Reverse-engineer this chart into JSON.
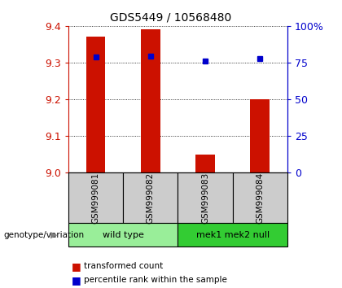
{
  "title": "GDS5449 / 10568480",
  "samples": [
    "GSM999081",
    "GSM999082",
    "GSM999083",
    "GSM999084"
  ],
  "bar_values": [
    9.37,
    9.39,
    9.05,
    9.2
  ],
  "dot_values": [
    9.315,
    9.317,
    9.305,
    9.31
  ],
  "ylim": [
    9.0,
    9.4
  ],
  "yticks": [
    9.0,
    9.1,
    9.2,
    9.3,
    9.4
  ],
  "right_yticks": [
    0,
    25,
    50,
    75,
    100
  ],
  "right_ylabels": [
    "0",
    "25",
    "50",
    "75",
    "100%"
  ],
  "bar_color": "#cc1100",
  "dot_color": "#0000cc",
  "groups": [
    {
      "label": "wild type",
      "samples": [
        0,
        1
      ],
      "color": "#99ee99"
    },
    {
      "label": "mek1 mek2 null",
      "samples": [
        2,
        3
      ],
      "color": "#33cc33"
    }
  ],
  "group_label": "genotype/variation",
  "legend_bar": "transformed count",
  "legend_dot": "percentile rank within the sample",
  "bar_width": 0.35,
  "title_color": "#000000",
  "left_tick_color": "#cc1100",
  "right_tick_color": "#0000cc",
  "sample_box_color": "#cccccc"
}
